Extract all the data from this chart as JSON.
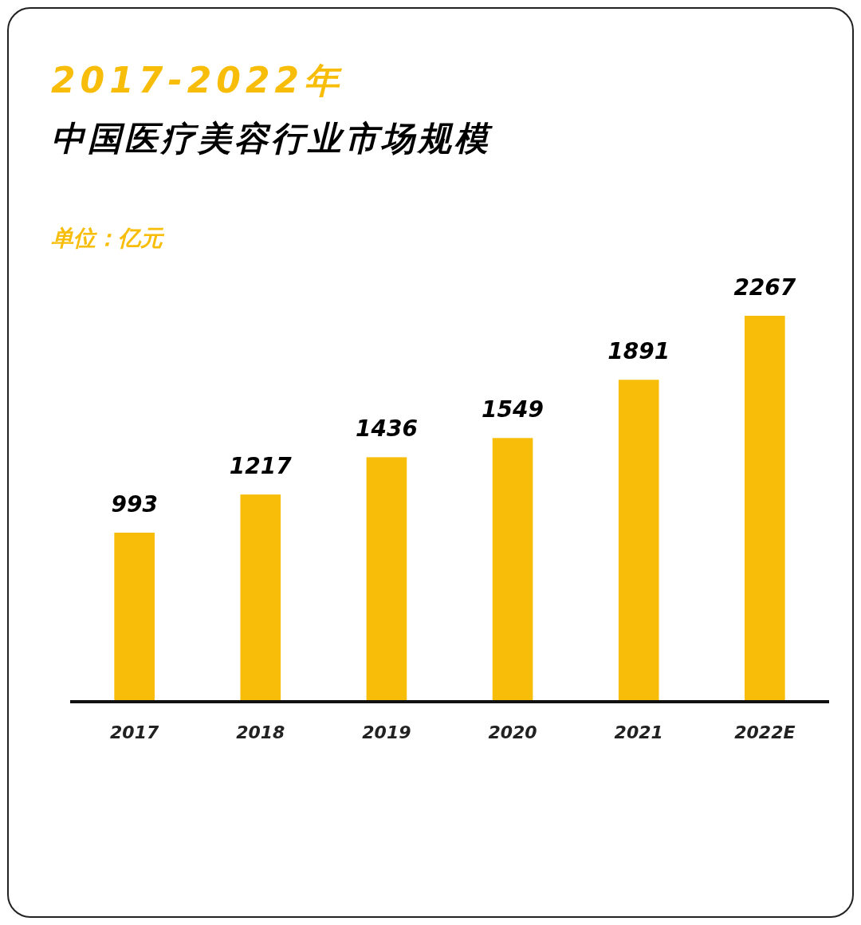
{
  "chart_data": {
    "type": "bar",
    "title": "2017-2022年",
    "subtitle": "中国医疗美容行业市场规模",
    "ylabel": "单位：亿元",
    "categories": [
      "2017",
      "2018",
      "2019",
      "2020",
      "2021",
      "2022E"
    ],
    "values": [
      993,
      1217,
      1436,
      1549,
      1891,
      2267
    ],
    "color": "#f8bd08",
    "data_labels": true
  }
}
